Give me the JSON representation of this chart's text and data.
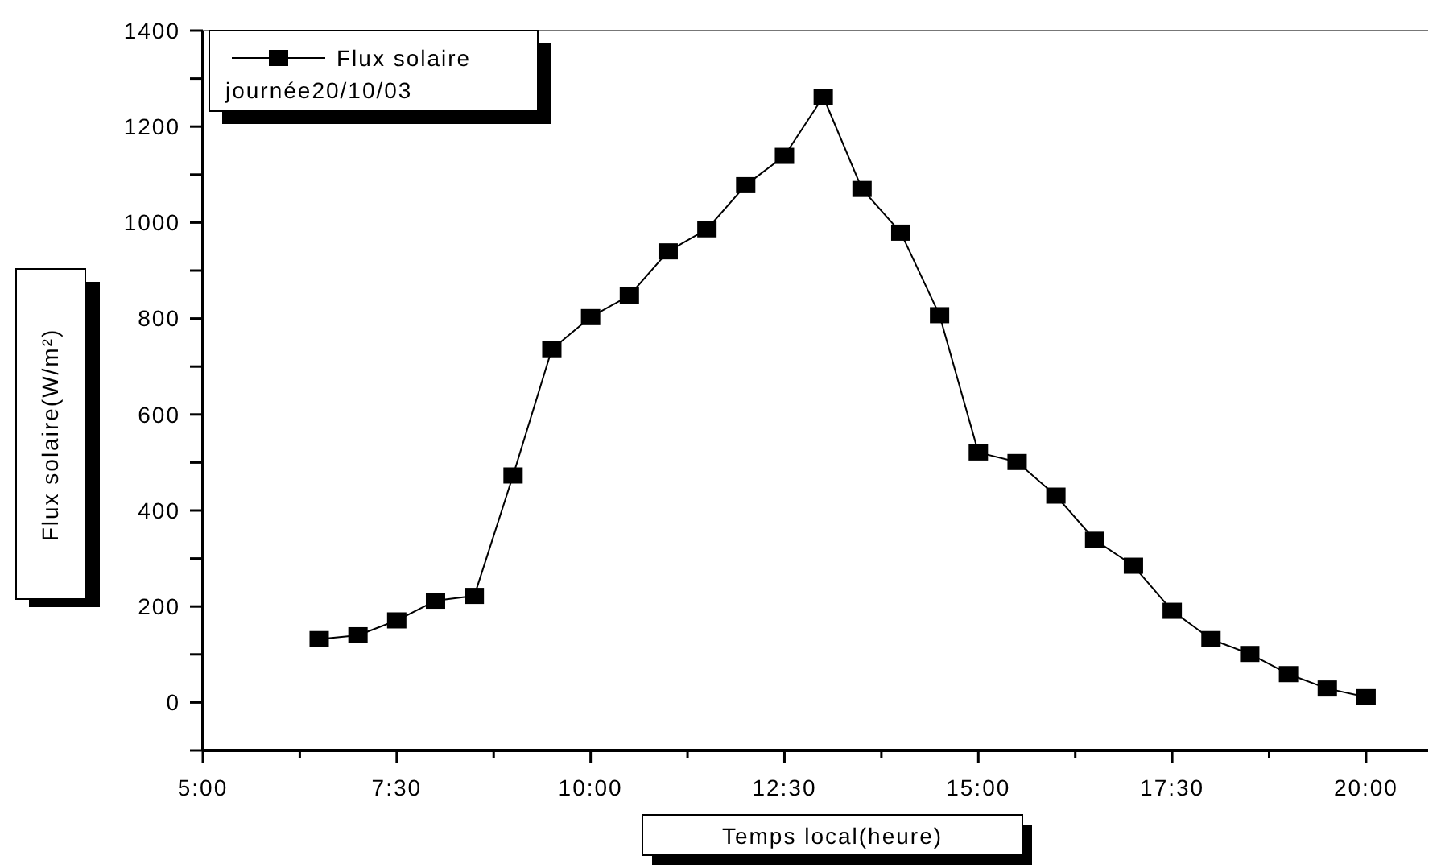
{
  "chart_data": {
    "type": "line",
    "xlabel": "Temps local(heure)",
    "ylabel": "Flux solaire(W/m²)",
    "x": [
      6.5,
      7,
      7.5,
      8,
      8.5,
      9,
      9.5,
      10,
      10.5,
      11,
      11.5,
      12,
      12.5,
      13,
      13.5,
      14,
      14.5,
      15,
      15.5,
      16,
      16.5,
      17,
      17.5,
      18,
      18.5,
      19,
      19.5,
      20
    ],
    "series": [
      {
        "name": "Flux solaire",
        "color": "#000000",
        "values": [
          132,
          140,
          171,
          212,
          222,
          473,
          736,
          803,
          848,
          940,
          986,
          1078,
          1139,
          1262,
          1070,
          979,
          807,
          521,
          501,
          431,
          339,
          285,
          191,
          132,
          101,
          59,
          29,
          11
        ]
      }
    ],
    "xlim": [
      5,
      20.8
    ],
    "ylim": [
      -100,
      1400
    ],
    "xticks": [
      {
        "value": 5,
        "label": "5:00"
      },
      {
        "value": 6.25,
        "label": null
      },
      {
        "value": 7.5,
        "label": "7:30"
      },
      {
        "value": 8.75,
        "label": null
      },
      {
        "value": 10,
        "label": "10:00"
      },
      {
        "value": 11.25,
        "label": null
      },
      {
        "value": 12.5,
        "label": "12:30"
      },
      {
        "value": 13.75,
        "label": null
      },
      {
        "value": 15,
        "label": "15:00"
      },
      {
        "value": 16.25,
        "label": null
      },
      {
        "value": 17.5,
        "label": "17:30"
      },
      {
        "value": 18.75,
        "label": null
      },
      {
        "value": 20,
        "label": "20:00"
      }
    ],
    "yticks": [
      {
        "value": -100,
        "label": null
      },
      0,
      {
        "value": 100,
        "label": null
      },
      200,
      {
        "value": 300,
        "label": null
      },
      400,
      {
        "value": 500,
        "label": null
      },
      600,
      {
        "value": 700,
        "label": null
      },
      800,
      {
        "value": 900,
        "label": null
      },
      1000,
      {
        "value": 1100,
        "label": null
      },
      1200,
      {
        "value": 1300,
        "label": null
      },
      1400
    ],
    "annotations": [
      "journée20/10/03"
    ],
    "legend": "top left",
    "marker": "square",
    "line_style": "solid",
    "grid": false
  }
}
